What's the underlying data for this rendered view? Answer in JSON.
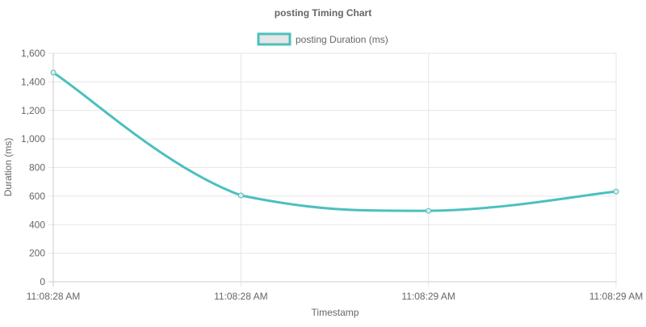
{
  "chart_data": {
    "type": "line",
    "title": "posting Timing Chart",
    "xlabel": "Timestamp",
    "ylabel": "Duration (ms)",
    "categories": [
      "11:08:28 AM",
      "11:08:28 AM",
      "11:08:29 AM",
      "11:08:29 AM"
    ],
    "series": [
      {
        "name": "posting Duration (ms)",
        "values": [
          1465,
          605,
          497,
          632
        ],
        "color": "#4bc0c0",
        "fill_color": "#e6e6e6"
      }
    ],
    "ylim": [
      0,
      1600
    ],
    "yticks": [
      0,
      200,
      400,
      600,
      800,
      1000,
      1200,
      1400,
      1600
    ],
    "ytick_labels": [
      "0",
      "200",
      "400",
      "600",
      "800",
      "1,000",
      "1,200",
      "1,400",
      "1,600"
    ],
    "grid": true,
    "legend_position": "top-center"
  }
}
